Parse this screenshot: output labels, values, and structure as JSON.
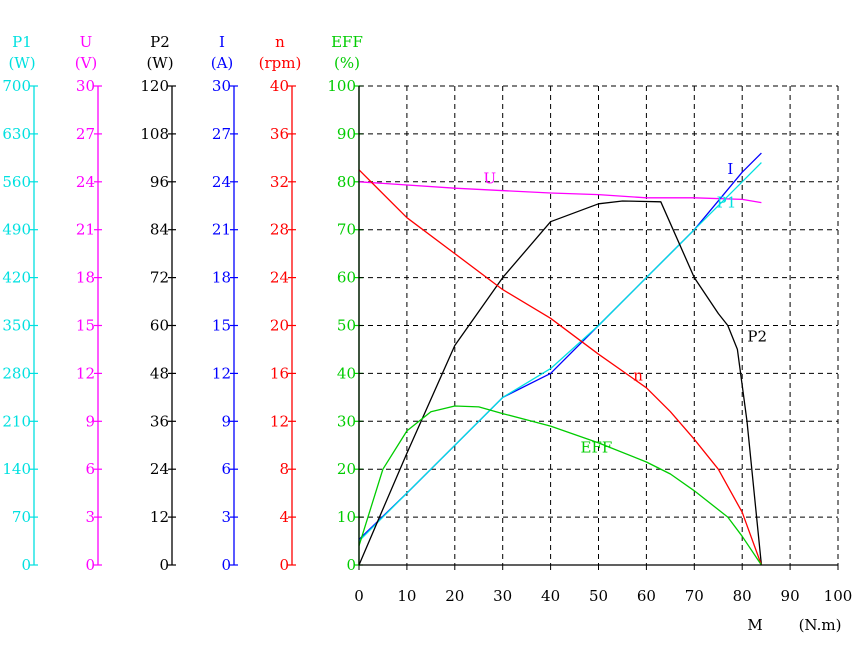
{
  "chart_data": {
    "type": "line",
    "x_axis": {
      "ticks": [
        0,
        10,
        20,
        30,
        40,
        50,
        60,
        70,
        80,
        90,
        100
      ],
      "label": "M",
      "unit": "(N.m)",
      "range": [
        0,
        100
      ]
    },
    "grid": true,
    "y_axes": [
      {
        "id": "p1",
        "name": "P1",
        "unit": "(W)",
        "color": "#00e0e0",
        "range": [
          0,
          700
        ],
        "ticks": [
          0,
          70,
          140,
          210,
          280,
          350,
          420,
          490,
          560,
          630,
          700
        ]
      },
      {
        "id": "u",
        "name": "U",
        "unit": "(V)",
        "color": "#ff00ff",
        "range": [
          0,
          30
        ],
        "ticks": [
          0,
          3,
          6,
          9,
          12,
          15,
          18,
          21,
          24,
          27,
          30
        ]
      },
      {
        "id": "p2",
        "name": "P2",
        "unit": "(W)",
        "color": "#000000",
        "range": [
          0,
          120
        ],
        "ticks": [
          0,
          12,
          24,
          36,
          48,
          60,
          72,
          84,
          96,
          108,
          120
        ]
      },
      {
        "id": "i",
        "name": "I",
        "unit": "(A)",
        "color": "#0000ff",
        "range": [
          0,
          30
        ],
        "ticks": [
          0,
          3,
          6,
          9,
          12,
          15,
          18,
          21,
          24,
          27,
          30
        ]
      },
      {
        "id": "n",
        "name": "n",
        "unit": "(rpm)",
        "color": "#ff0000",
        "range": [
          0,
          40
        ],
        "ticks": [
          0,
          4,
          8,
          12,
          16,
          20,
          24,
          28,
          32,
          36,
          40
        ]
      },
      {
        "id": "eff",
        "name": "EFF",
        "unit": "(%)",
        "color": "#00cc00",
        "range": [
          0,
          100
        ],
        "ticks": [
          0,
          10,
          20,
          30,
          40,
          50,
          60,
          70,
          80,
          90,
          100
        ]
      }
    ],
    "series": [
      {
        "name": "U",
        "axis": "u",
        "color": "#ff00ff",
        "x": [
          0,
          20,
          40,
          50,
          60,
          70,
          80,
          84
        ],
        "y": [
          24.0,
          23.6,
          23.3,
          23.2,
          23.0,
          23.0,
          22.9,
          22.7
        ]
      },
      {
        "name": "I",
        "axis": "i",
        "color": "#0000ff",
        "x": [
          0,
          10,
          20,
          30,
          40,
          50,
          60,
          70,
          80,
          84
        ],
        "y": [
          1.6,
          4.5,
          7.5,
          10.5,
          12.0,
          15.0,
          18.0,
          21.0,
          24.6,
          25.8
        ]
      },
      {
        "name": "P1",
        "axis": "p1",
        "color": "#00e0e0",
        "x": [
          0,
          10,
          20,
          30,
          40,
          50,
          60,
          70,
          80,
          84
        ],
        "y": [
          35,
          105,
          175,
          245,
          287,
          350,
          420,
          490,
          560,
          588
        ]
      },
      {
        "name": "P2",
        "axis": "p2",
        "color": "#000000",
        "x": [
          0,
          5,
          10,
          20,
          30,
          40,
          50,
          55,
          63,
          70,
          75,
          77,
          79,
          81,
          84
        ],
        "y": [
          0,
          14,
          28,
          55,
          72,
          86,
          90.5,
          91.2,
          91,
          72,
          63,
          60,
          54,
          36,
          0
        ]
      },
      {
        "name": "n",
        "axis": "n",
        "color": "#ff0000",
        "x": [
          0,
          10,
          20,
          30,
          40,
          50,
          60,
          65,
          70,
          75,
          80,
          84
        ],
        "y": [
          33,
          29,
          26,
          23,
          20.6,
          17.6,
          14.8,
          12.8,
          10.5,
          8.0,
          4.4,
          0
        ]
      },
      {
        "name": "EFF",
        "axis": "eff",
        "color": "#00cc00",
        "x": [
          0,
          5,
          10,
          15,
          20,
          25,
          30,
          40,
          50,
          60,
          65,
          70,
          77,
          80,
          84
        ],
        "y": [
          4,
          20,
          28,
          32,
          33.2,
          33,
          31.6,
          29,
          25.5,
          21.5,
          19,
          15.5,
          10,
          6,
          0
        ]
      }
    ],
    "annotations": [
      {
        "text": "U",
        "series": "U",
        "x": 26,
        "color": "#ff00ff"
      },
      {
        "text": "I",
        "series": "I",
        "x": 79,
        "color": "#0000ff"
      },
      {
        "text": "P1",
        "series": "P1",
        "x": 78,
        "color": "#00e0e0"
      },
      {
        "text": "P2",
        "series": "P2",
        "x": 79,
        "color": "#000000"
      },
      {
        "text": "n",
        "series": "n",
        "x": 56,
        "color": "#ff0000"
      },
      {
        "text": "EFF",
        "series": "EFF",
        "x": 45,
        "color": "#00cc00"
      }
    ]
  }
}
